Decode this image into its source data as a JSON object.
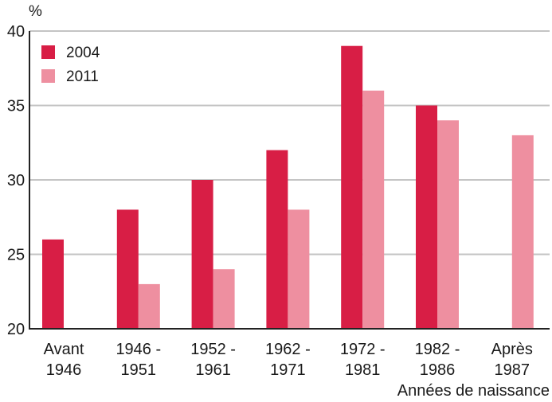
{
  "chart_data": {
    "type": "bar",
    "y_unit_label": "%",
    "xlabel": "Années de naissance",
    "categories": [
      [
        "Avant",
        "1946"
      ],
      [
        "1946 -",
        "1951"
      ],
      [
        "1952 -",
        "1961"
      ],
      [
        "1962 -",
        "1971"
      ],
      [
        "1972 -",
        "1981"
      ],
      [
        "1982 -",
        "1986"
      ],
      [
        "Après",
        "1987"
      ]
    ],
    "series": [
      {
        "name": "2004",
        "color": "#d81e45",
        "values": [
          26,
          28,
          30,
          32,
          39,
          35,
          null
        ]
      },
      {
        "name": "2011",
        "color": "#ee8fa0",
        "values": [
          null,
          23,
          24,
          28,
          36,
          34,
          33
        ]
      }
    ],
    "ylim": [
      20,
      40
    ],
    "yticks": [
      20,
      25,
      30,
      35,
      40
    ],
    "grid": true,
    "legend_position": "top-left"
  }
}
